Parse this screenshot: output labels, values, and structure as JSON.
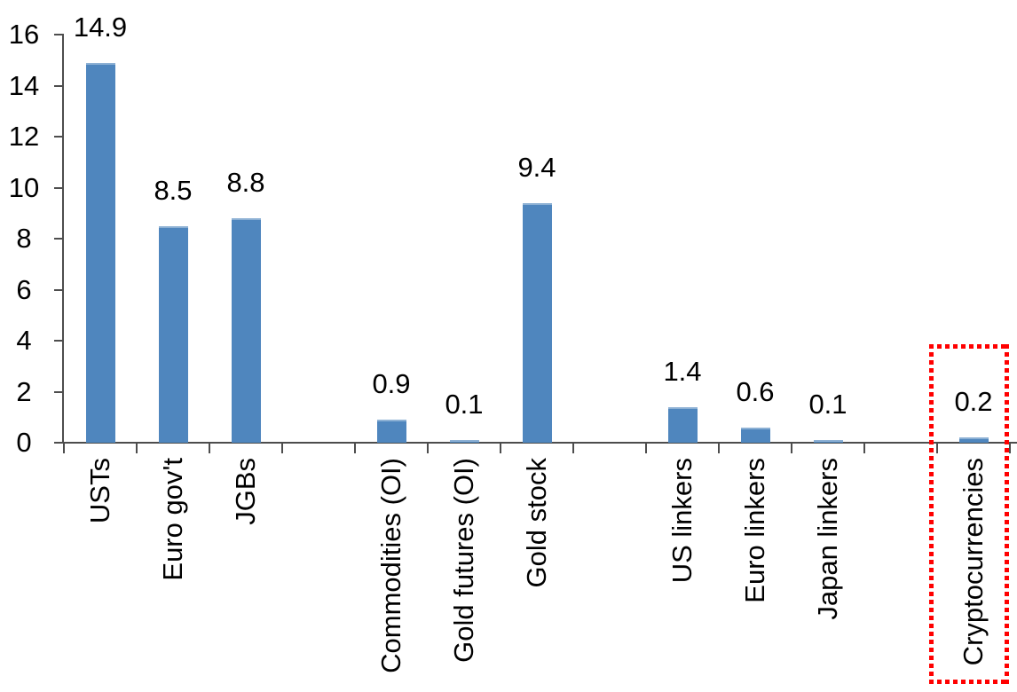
{
  "chart_data": {
    "type": "bar",
    "title": "",
    "xlabel": "",
    "ylabel": "",
    "categories": [
      "USTs",
      "Euro gov't",
      "JGBs",
      "",
      "Commodities (OI)",
      "Gold futures (OI)",
      "Gold stock",
      "",
      "US linkers",
      "Euro linkers",
      "Japan linkers",
      "",
      "Cryptocurrencies"
    ],
    "values": [
      14.9,
      8.5,
      8.8,
      null,
      0.9,
      0.1,
      9.4,
      null,
      1.4,
      0.6,
      0.1,
      null,
      0.2
    ],
    "value_labels": [
      "14.9",
      "8.5",
      "8.8",
      null,
      "0.9",
      "0.1",
      "9.4",
      null,
      "1.4",
      "0.6",
      "0.1",
      null,
      "0.2"
    ],
    "y_ticks": [
      "0",
      "2",
      "4",
      "6",
      "8",
      "10",
      "12",
      "14",
      "16"
    ],
    "ylim": [
      0,
      16
    ],
    "grid": "off",
    "legend": "none",
    "bar_color": "#4f86be",
    "axis_color": "#4d4d4d",
    "label_color": "#000000",
    "highlight": {
      "category": "Cryptocurrencies",
      "box_color": "#ff0000",
      "style": "dotted-rectangle"
    }
  }
}
